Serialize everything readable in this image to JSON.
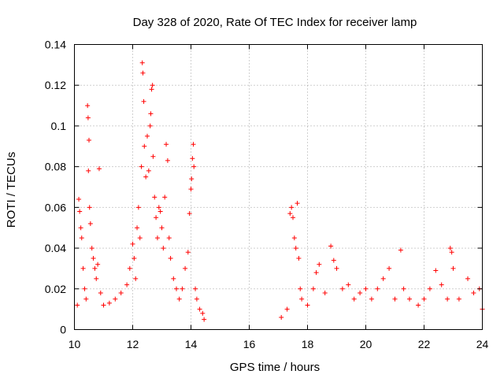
{
  "chart_data": {
    "type": "scatter",
    "title": "Day 328 of 2020, Rate Of TEC Index for receiver lamp",
    "xlabel": "GPS time / hours",
    "ylabel": "ROTI / TECUs",
    "xlim": [
      10,
      24
    ],
    "ylim": [
      0,
      0.14
    ],
    "grid": true,
    "marker": "+",
    "color": "#ff0000",
    "x_ticks": [
      10,
      12,
      14,
      16,
      18,
      20,
      22,
      24
    ],
    "x_tick_labels": [
      "10",
      "12",
      "14",
      "16",
      "18",
      "20",
      "22",
      "24"
    ],
    "y_ticks": [
      0,
      0.02,
      0.04,
      0.06,
      0.08,
      0.1,
      0.12,
      0.14
    ],
    "y_tick_labels": [
      "0",
      "0.02",
      "0.04",
      "0.06",
      "0.08",
      "0.1",
      "0.12",
      "0.14"
    ],
    "series": [
      {
        "name": "ROTI",
        "points": [
          [
            10.1,
            0.012
          ],
          [
            10.15,
            0.064
          ],
          [
            10.18,
            0.058
          ],
          [
            10.22,
            0.05
          ],
          [
            10.25,
            0.045
          ],
          [
            10.3,
            0.03
          ],
          [
            10.35,
            0.02
          ],
          [
            10.4,
            0.015
          ],
          [
            10.45,
            0.11
          ],
          [
            10.47,
            0.104
          ],
          [
            10.5,
            0.093
          ],
          [
            10.48,
            0.078
          ],
          [
            10.52,
            0.06
          ],
          [
            10.55,
            0.052
          ],
          [
            10.6,
            0.04
          ],
          [
            10.65,
            0.035
          ],
          [
            10.7,
            0.03
          ],
          [
            10.75,
            0.025
          ],
          [
            10.8,
            0.032
          ],
          [
            10.85,
            0.079
          ],
          [
            10.9,
            0.018
          ],
          [
            11.0,
            0.012
          ],
          [
            11.2,
            0.013
          ],
          [
            11.4,
            0.015
          ],
          [
            11.6,
            0.018
          ],
          [
            11.8,
            0.022
          ],
          [
            11.9,
            0.03
          ],
          [
            12.0,
            0.042
          ],
          [
            12.05,
            0.035
          ],
          [
            12.1,
            0.025
          ],
          [
            12.15,
            0.05
          ],
          [
            12.2,
            0.06
          ],
          [
            12.25,
            0.045
          ],
          [
            12.3,
            0.08
          ],
          [
            12.33,
            0.131
          ],
          [
            12.35,
            0.126
          ],
          [
            12.38,
            0.112
          ],
          [
            12.4,
            0.09
          ],
          [
            12.45,
            0.075
          ],
          [
            12.5,
            0.095
          ],
          [
            12.55,
            0.078
          ],
          [
            12.6,
            0.1
          ],
          [
            12.62,
            0.106
          ],
          [
            12.65,
            0.118
          ],
          [
            12.68,
            0.12
          ],
          [
            12.7,
            0.085
          ],
          [
            12.75,
            0.065
          ],
          [
            12.8,
            0.055
          ],
          [
            12.85,
            0.045
          ],
          [
            12.9,
            0.06
          ],
          [
            12.95,
            0.058
          ],
          [
            13.0,
            0.05
          ],
          [
            13.05,
            0.04
          ],
          [
            13.1,
            0.065
          ],
          [
            13.15,
            0.091
          ],
          [
            13.2,
            0.083
          ],
          [
            13.25,
            0.045
          ],
          [
            13.3,
            0.035
          ],
          [
            13.4,
            0.025
          ],
          [
            13.5,
            0.02
          ],
          [
            13.6,
            0.015
          ],
          [
            13.7,
            0.02
          ],
          [
            13.8,
            0.03
          ],
          [
            13.9,
            0.038
          ],
          [
            13.95,
            0.057
          ],
          [
            14.0,
            0.069
          ],
          [
            14.02,
            0.074
          ],
          [
            14.05,
            0.084
          ],
          [
            14.08,
            0.091
          ],
          [
            14.1,
            0.08
          ],
          [
            14.15,
            0.02
          ],
          [
            14.2,
            0.015
          ],
          [
            14.3,
            0.01
          ],
          [
            14.4,
            0.008
          ],
          [
            14.45,
            0.005
          ],
          [
            17.1,
            0.006
          ],
          [
            17.3,
            0.01
          ],
          [
            17.4,
            0.057
          ],
          [
            17.45,
            0.06
          ],
          [
            17.5,
            0.055
          ],
          [
            17.55,
            0.045
          ],
          [
            17.6,
            0.04
          ],
          [
            17.65,
            0.062
          ],
          [
            17.7,
            0.035
          ],
          [
            17.75,
            0.02
          ],
          [
            17.8,
            0.015
          ],
          [
            18.0,
            0.012
          ],
          [
            18.2,
            0.02
          ],
          [
            18.3,
            0.028
          ],
          [
            18.4,
            0.032
          ],
          [
            18.6,
            0.018
          ],
          [
            18.8,
            0.041
          ],
          [
            18.9,
            0.034
          ],
          [
            19.0,
            0.03
          ],
          [
            19.2,
            0.02
          ],
          [
            19.4,
            0.022
          ],
          [
            19.6,
            0.015
          ],
          [
            19.8,
            0.018
          ],
          [
            20.0,
            0.02
          ],
          [
            20.2,
            0.015
          ],
          [
            20.4,
            0.02
          ],
          [
            20.6,
            0.025
          ],
          [
            20.8,
            0.03
          ],
          [
            21.0,
            0.015
          ],
          [
            21.2,
            0.039
          ],
          [
            21.3,
            0.02
          ],
          [
            21.5,
            0.015
          ],
          [
            21.8,
            0.012
          ],
          [
            22.0,
            0.015
          ],
          [
            22.2,
            0.02
          ],
          [
            22.4,
            0.029
          ],
          [
            22.6,
            0.022
          ],
          [
            22.8,
            0.015
          ],
          [
            22.9,
            0.04
          ],
          [
            22.95,
            0.038
          ],
          [
            23.0,
            0.03
          ],
          [
            23.2,
            0.015
          ],
          [
            23.5,
            0.025
          ],
          [
            23.7,
            0.018
          ],
          [
            23.9,
            0.02
          ],
          [
            24.0,
            0.01
          ]
        ]
      }
    ]
  }
}
